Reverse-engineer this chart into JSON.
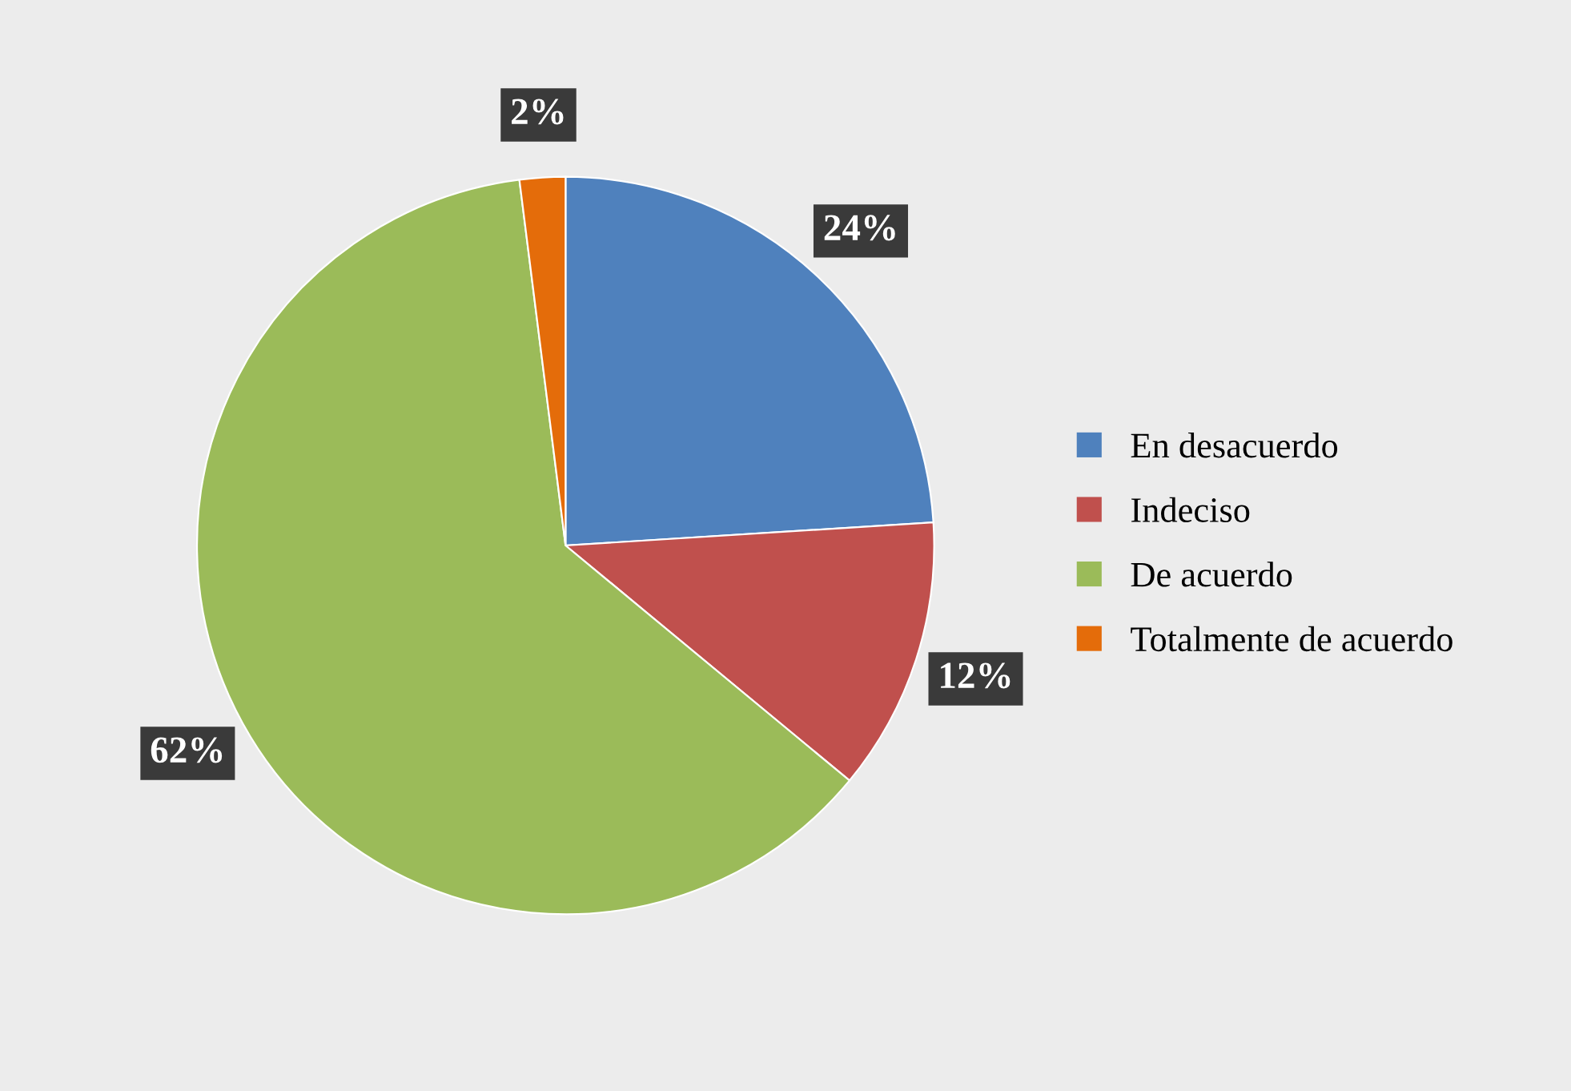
{
  "chart_data": {
    "type": "pie",
    "categories": [
      "En desacuerdo",
      "Indeciso",
      "De acuerdo",
      "Totalmente de acuerdo"
    ],
    "values": [
      24,
      12,
      62,
      2
    ],
    "colors": [
      "#4f81bd",
      "#c0504d",
      "#9bbb59",
      "#e46c0a"
    ],
    "value_labels": [
      "24%",
      "12%",
      "62%",
      "2%"
    ],
    "legend": "right"
  }
}
